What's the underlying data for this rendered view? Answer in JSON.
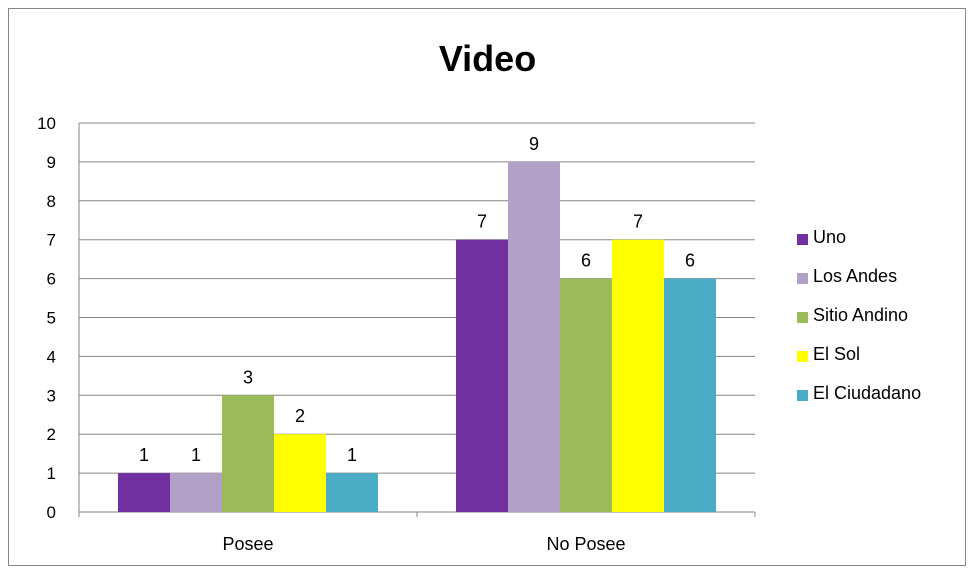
{
  "chart_data": {
    "type": "bar",
    "title": "Video",
    "categories": [
      "Posee",
      "No Posee"
    ],
    "series": [
      {
        "name": "Uno",
        "values": [
          1,
          7
        ],
        "color": "#7030A0"
      },
      {
        "name": "Los Andes",
        "values": [
          1,
          9
        ],
        "color": "#B2A1C7"
      },
      {
        "name": "Sitio Andino",
        "values": [
          3,
          6
        ],
        "color": "#9BBB59"
      },
      {
        "name": "El Sol",
        "values": [
          2,
          7
        ],
        "color": "#FFFF00"
      },
      {
        "name": "El Ciudadano",
        "values": [
          1,
          6
        ],
        "color": "#4BACC6"
      }
    ],
    "ylim": [
      0,
      10
    ],
    "yticks": [
      "0",
      "1",
      "2",
      "3",
      "4",
      "5",
      "6",
      "7",
      "8",
      "9",
      "10"
    ],
    "grid": true,
    "legend_position": "right",
    "data_labels": true
  }
}
